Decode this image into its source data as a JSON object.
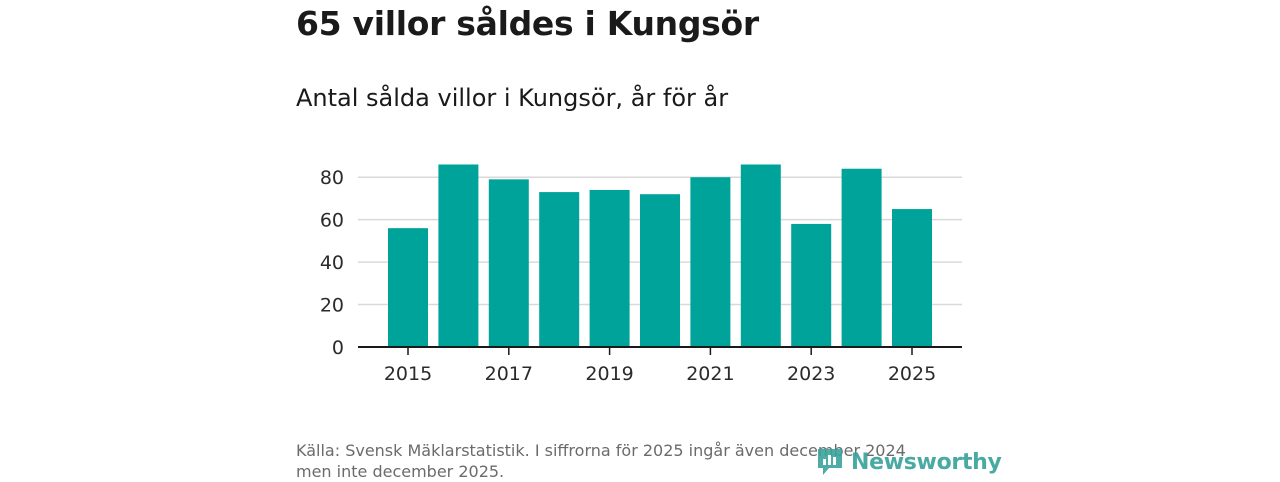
{
  "header": {
    "title": "65 villor såldes i Kungsör",
    "subtitle": "Antal sålda villor i Kungsör, år för år"
  },
  "footer": {
    "source_line1": "Källa: Svensk Mäklarstatistik. I siffrorna för 2025 ingår även december 2024",
    "source_line2": "men inte december 2025."
  },
  "logo": {
    "text": "Newsworthy",
    "icon": "newsworthy-bar-chart-icon",
    "color": "#3aa39c"
  },
  "chart_data": {
    "type": "bar",
    "x": [
      2015,
      2016,
      2017,
      2018,
      2019,
      2020,
      2021,
      2022,
      2023,
      2024,
      2025
    ],
    "values": [
      56,
      86,
      79,
      73,
      74,
      72,
      80,
      86,
      58,
      84,
      65
    ],
    "x_tick_labels": [
      "2015",
      "2017",
      "2019",
      "2021",
      "2023",
      "2025"
    ],
    "y_ticks": [
      0,
      20,
      40,
      60,
      80
    ],
    "ylim": [
      0,
      90
    ],
    "xlabel": "",
    "ylabel": "",
    "grid": true,
    "bar_color": "#00a39a"
  }
}
